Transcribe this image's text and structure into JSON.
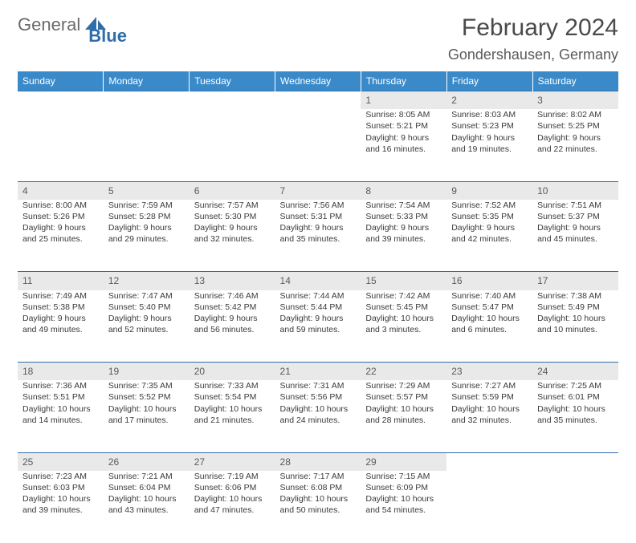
{
  "logo": {
    "part1": "General",
    "part2": "Blue"
  },
  "header": {
    "title": "February 2024",
    "location": "Gondershausen, Germany"
  },
  "colors": {
    "header_bg": "#3a8ac9",
    "header_text": "#ffffff",
    "daynum_bg": "#e9e9e9",
    "sep_color": "#2f6ea8",
    "body_text": "#3a3a3a",
    "logo_gray": "#6a6a6a",
    "logo_blue": "#2f6ea8"
  },
  "weekdays": [
    "Sunday",
    "Monday",
    "Tuesday",
    "Wednesday",
    "Thursday",
    "Friday",
    "Saturday"
  ],
  "weeks": [
    {
      "nums": [
        "",
        "",
        "",
        "",
        "1",
        "2",
        "3"
      ],
      "cells": [
        null,
        null,
        null,
        null,
        {
          "sunrise": "Sunrise: 8:05 AM",
          "sunset": "Sunset: 5:21 PM",
          "day": "Daylight: 9 hours and 16 minutes."
        },
        {
          "sunrise": "Sunrise: 8:03 AM",
          "sunset": "Sunset: 5:23 PM",
          "day": "Daylight: 9 hours and 19 minutes."
        },
        {
          "sunrise": "Sunrise: 8:02 AM",
          "sunset": "Sunset: 5:25 PM",
          "day": "Daylight: 9 hours and 22 minutes."
        }
      ]
    },
    {
      "nums": [
        "4",
        "5",
        "6",
        "7",
        "8",
        "9",
        "10"
      ],
      "cells": [
        {
          "sunrise": "Sunrise: 8:00 AM",
          "sunset": "Sunset: 5:26 PM",
          "day": "Daylight: 9 hours and 25 minutes."
        },
        {
          "sunrise": "Sunrise: 7:59 AM",
          "sunset": "Sunset: 5:28 PM",
          "day": "Daylight: 9 hours and 29 minutes."
        },
        {
          "sunrise": "Sunrise: 7:57 AM",
          "sunset": "Sunset: 5:30 PM",
          "day": "Daylight: 9 hours and 32 minutes."
        },
        {
          "sunrise": "Sunrise: 7:56 AM",
          "sunset": "Sunset: 5:31 PM",
          "day": "Daylight: 9 hours and 35 minutes."
        },
        {
          "sunrise": "Sunrise: 7:54 AM",
          "sunset": "Sunset: 5:33 PM",
          "day": "Daylight: 9 hours and 39 minutes."
        },
        {
          "sunrise": "Sunrise: 7:52 AM",
          "sunset": "Sunset: 5:35 PM",
          "day": "Daylight: 9 hours and 42 minutes."
        },
        {
          "sunrise": "Sunrise: 7:51 AM",
          "sunset": "Sunset: 5:37 PM",
          "day": "Daylight: 9 hours and 45 minutes."
        }
      ]
    },
    {
      "nums": [
        "11",
        "12",
        "13",
        "14",
        "15",
        "16",
        "17"
      ],
      "cells": [
        {
          "sunrise": "Sunrise: 7:49 AM",
          "sunset": "Sunset: 5:38 PM",
          "day": "Daylight: 9 hours and 49 minutes."
        },
        {
          "sunrise": "Sunrise: 7:47 AM",
          "sunset": "Sunset: 5:40 PM",
          "day": "Daylight: 9 hours and 52 minutes."
        },
        {
          "sunrise": "Sunrise: 7:46 AM",
          "sunset": "Sunset: 5:42 PM",
          "day": "Daylight: 9 hours and 56 minutes."
        },
        {
          "sunrise": "Sunrise: 7:44 AM",
          "sunset": "Sunset: 5:44 PM",
          "day": "Daylight: 9 hours and 59 minutes."
        },
        {
          "sunrise": "Sunrise: 7:42 AM",
          "sunset": "Sunset: 5:45 PM",
          "day": "Daylight: 10 hours and 3 minutes."
        },
        {
          "sunrise": "Sunrise: 7:40 AM",
          "sunset": "Sunset: 5:47 PM",
          "day": "Daylight: 10 hours and 6 minutes."
        },
        {
          "sunrise": "Sunrise: 7:38 AM",
          "sunset": "Sunset: 5:49 PM",
          "day": "Daylight: 10 hours and 10 minutes."
        }
      ]
    },
    {
      "nums": [
        "18",
        "19",
        "20",
        "21",
        "22",
        "23",
        "24"
      ],
      "cells": [
        {
          "sunrise": "Sunrise: 7:36 AM",
          "sunset": "Sunset: 5:51 PM",
          "day": "Daylight: 10 hours and 14 minutes."
        },
        {
          "sunrise": "Sunrise: 7:35 AM",
          "sunset": "Sunset: 5:52 PM",
          "day": "Daylight: 10 hours and 17 minutes."
        },
        {
          "sunrise": "Sunrise: 7:33 AM",
          "sunset": "Sunset: 5:54 PM",
          "day": "Daylight: 10 hours and 21 minutes."
        },
        {
          "sunrise": "Sunrise: 7:31 AM",
          "sunset": "Sunset: 5:56 PM",
          "day": "Daylight: 10 hours and 24 minutes."
        },
        {
          "sunrise": "Sunrise: 7:29 AM",
          "sunset": "Sunset: 5:57 PM",
          "day": "Daylight: 10 hours and 28 minutes."
        },
        {
          "sunrise": "Sunrise: 7:27 AM",
          "sunset": "Sunset: 5:59 PM",
          "day": "Daylight: 10 hours and 32 minutes."
        },
        {
          "sunrise": "Sunrise: 7:25 AM",
          "sunset": "Sunset: 6:01 PM",
          "day": "Daylight: 10 hours and 35 minutes."
        }
      ]
    },
    {
      "nums": [
        "25",
        "26",
        "27",
        "28",
        "29",
        "",
        ""
      ],
      "cells": [
        {
          "sunrise": "Sunrise: 7:23 AM",
          "sunset": "Sunset: 6:03 PM",
          "day": "Daylight: 10 hours and 39 minutes."
        },
        {
          "sunrise": "Sunrise: 7:21 AM",
          "sunset": "Sunset: 6:04 PM",
          "day": "Daylight: 10 hours and 43 minutes."
        },
        {
          "sunrise": "Sunrise: 7:19 AM",
          "sunset": "Sunset: 6:06 PM",
          "day": "Daylight: 10 hours and 47 minutes."
        },
        {
          "sunrise": "Sunrise: 7:17 AM",
          "sunset": "Sunset: 6:08 PM",
          "day": "Daylight: 10 hours and 50 minutes."
        },
        {
          "sunrise": "Sunrise: 7:15 AM",
          "sunset": "Sunset: 6:09 PM",
          "day": "Daylight: 10 hours and 54 minutes."
        },
        null,
        null
      ]
    }
  ]
}
